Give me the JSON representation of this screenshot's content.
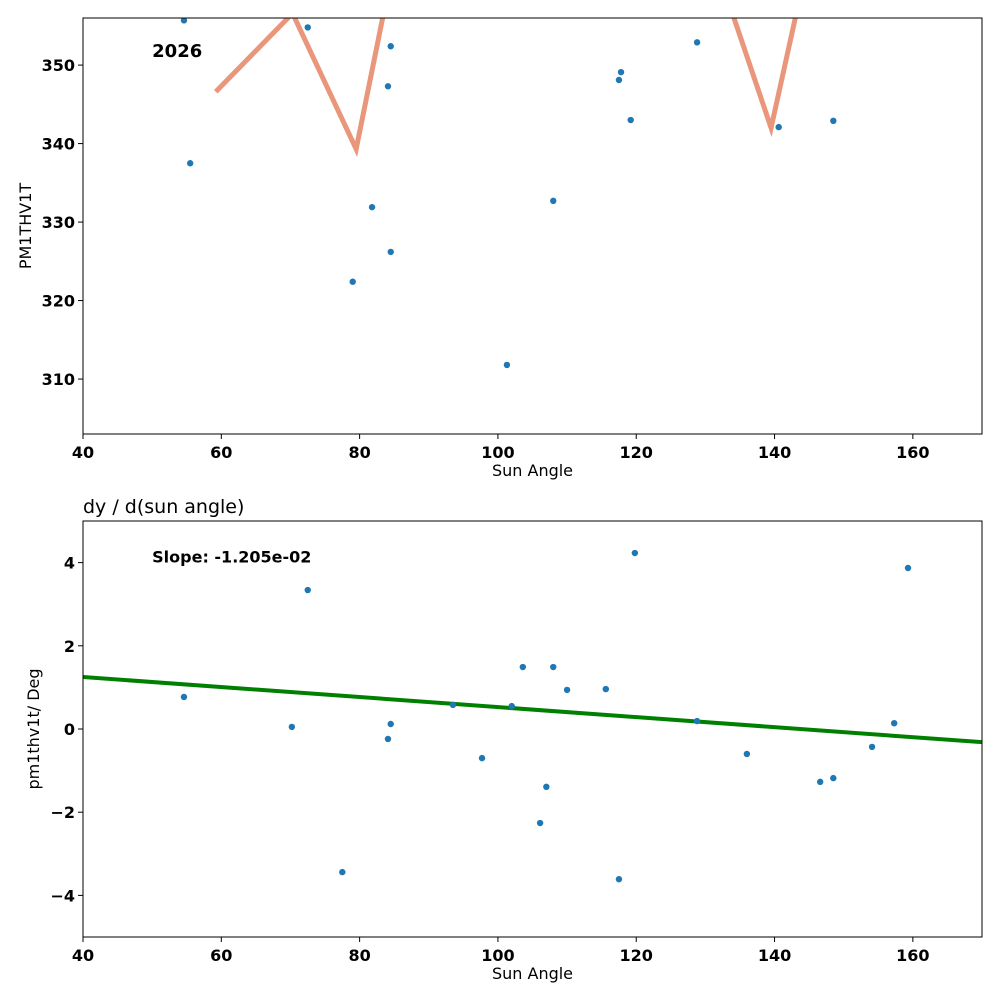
{
  "chart_data": [
    {
      "type": "scatter",
      "title": "",
      "xlabel": "Sun Angle",
      "ylabel": "PM1THV1T",
      "xlim": [
        40,
        170
      ],
      "ylim": [
        303,
        356
      ],
      "xticks": [
        40,
        60,
        80,
        100,
        120,
        140,
        160
      ],
      "yticks": [
        310,
        320,
        330,
        340,
        350
      ],
      "annotation": "2026",
      "annotation_pos": [
        50,
        351
      ],
      "points_color": "#1f77b4",
      "line_color": "#e9967a",
      "points": [
        [
          54.6,
          355.7
        ],
        [
          55.5,
          337.5
        ],
        [
          72.5,
          354.8
        ],
        [
          84.5,
          352.4
        ],
        [
          84.1,
          347.3
        ],
        [
          81.8,
          331.9
        ],
        [
          79.0,
          322.4
        ],
        [
          84.5,
          326.2
        ],
        [
          101.3,
          311.8
        ],
        [
          108.0,
          332.7
        ],
        [
          117.5,
          348.1
        ],
        [
          117.8,
          349.1
        ],
        [
          119.2,
          343.0
        ],
        [
          128.8,
          352.9
        ],
        [
          140.6,
          342.1
        ],
        [
          148.5,
          342.9
        ]
      ],
      "line": [
        [
          59.2,
          346.6
        ],
        [
          70.3,
          356.6
        ],
        [
          79.5,
          339.3
        ],
        [
          87,
          372
        ],
        [
          128,
          372
        ],
        [
          139.5,
          342.0
        ],
        [
          147,
          372
        ]
      ]
    },
    {
      "type": "scatter",
      "title": "dy / d(sun angle)",
      "xlabel": "Sun Angle",
      "ylabel": "pm1thv1t/ Deg",
      "xlim": [
        40,
        170
      ],
      "ylim": [
        -5,
        5
      ],
      "xticks": [
        40,
        60,
        80,
        100,
        120,
        140,
        160
      ],
      "yticks": [
        -4,
        -2,
        0,
        2,
        4
      ],
      "ytick_labels": [
        "−4",
        "−2",
        "0",
        "2",
        "4"
      ],
      "annotation": "Slope: -1.205e-02",
      "annotation_pos": [
        50,
        4.0
      ],
      "points_color": "#1f77b4",
      "line_color": "#008000",
      "points": [
        [
          54.6,
          0.77
        ],
        [
          70.2,
          0.05
        ],
        [
          72.5,
          3.34
        ],
        [
          77.5,
          -3.44
        ],
        [
          84.1,
          -0.24
        ],
        [
          84.5,
          0.12
        ],
        [
          93.5,
          0.58
        ],
        [
          97.7,
          -0.7
        ],
        [
          102.0,
          0.55
        ],
        [
          103.6,
          1.49
        ],
        [
          108.0,
          1.49
        ],
        [
          106.1,
          -2.26
        ],
        [
          107.0,
          -1.39
        ],
        [
          110.0,
          0.94
        ],
        [
          115.6,
          0.96
        ],
        [
          117.5,
          -3.61
        ],
        [
          119.8,
          4.23
        ],
        [
          128.8,
          0.19
        ],
        [
          136.0,
          -0.6
        ],
        [
          146.6,
          -1.27
        ],
        [
          148.5,
          -1.18
        ],
        [
          154.1,
          -0.43
        ],
        [
          157.3,
          0.14
        ],
        [
          159.3,
          3.87
        ]
      ],
      "line": [
        [
          40,
          1.25
        ],
        [
          170,
          -0.317
        ]
      ]
    }
  ]
}
